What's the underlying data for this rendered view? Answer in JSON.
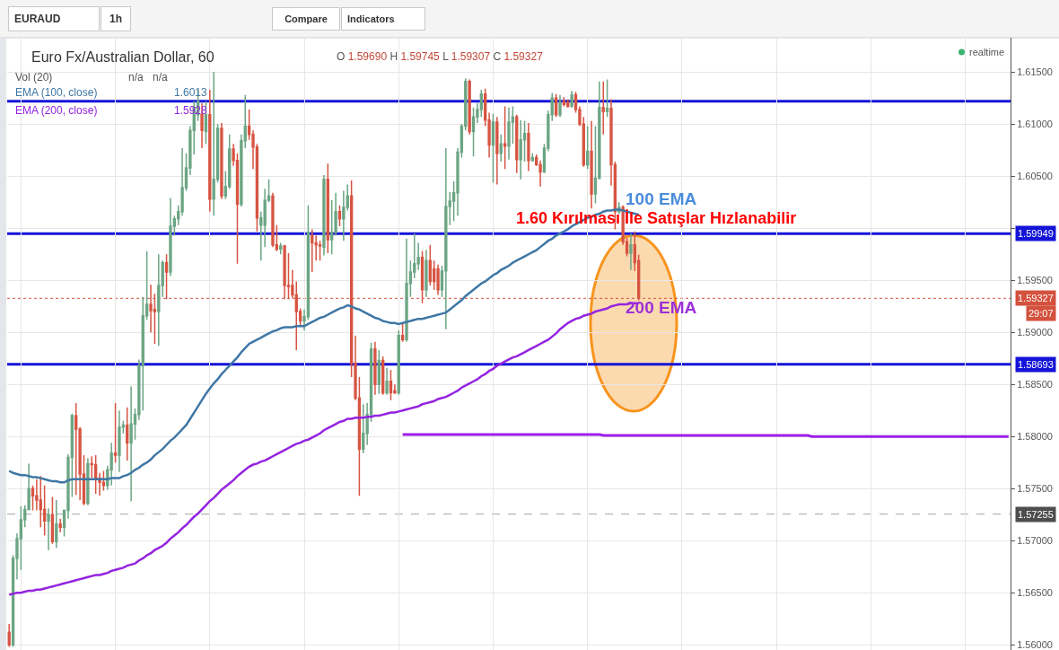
{
  "chart_data": {
    "type": "candlestick",
    "title": "Euro Fx/Australian Dollar, 60",
    "subtitle": "O 1.59690 H 1.59745 L 1.59307 C 1.59327",
    "categories": [
      null,
      null,
      null,
      null,
      null,
      null,
      null,
      null,
      null,
      null,
      null,
      null,
      null,
      null,
      null,
      null,
      null,
      null,
      null,
      null,
      null,
      null,
      null,
      null,
      null,
      null,
      null,
      null,
      null,
      null,
      null,
      null,
      null,
      null,
      null,
      null,
      null,
      null,
      null,
      null,
      null,
      null,
      null,
      null,
      null,
      null,
      null,
      null,
      null,
      null,
      null,
      null,
      null,
      null,
      null,
      null,
      null,
      null,
      null,
      null,
      null,
      null,
      null,
      null,
      null,
      null,
      null,
      null,
      null,
      null,
      null,
      null,
      null,
      null,
      null,
      null,
      null,
      null,
      null,
      null,
      null,
      null,
      null,
      null,
      null,
      null,
      null,
      null,
      null,
      null,
      null,
      null,
      null,
      null,
      null,
      null,
      null,
      null,
      null,
      null,
      null,
      null,
      null,
      null,
      null,
      null,
      null,
      null,
      null,
      null,
      null,
      null,
      null,
      null,
      null,
      null,
      null,
      null,
      null,
      null,
      null,
      null,
      null,
      null,
      null,
      null,
      null,
      null,
      null,
      null,
      null,
      null,
      null,
      null,
      null,
      null,
      null,
      null,
      null,
      null,
      null,
      null,
      null,
      null,
      null,
      null,
      null,
      null,
      null,
      null,
      null,
      null,
      null,
      null,
      null,
      null,
      null,
      null,
      null,
      null,
      null,
      null,
      null,
      null,
      null,
      null,
      null,
      null,
      null,
      null,
      null,
      null,
      null,
      null,
      null,
      null,
      null,
      null,
      null,
      null,
      null,
      null,
      null,
      null,
      null,
      null,
      null,
      null,
      null,
      null,
      null,
      null,
      null,
      null,
      null,
      null,
      null,
      null,
      null,
      null,
      null,
      null,
      null,
      null,
      null,
      null,
      null,
      null,
      null,
      null,
      null,
      null,
      null,
      null,
      null,
      null,
      null,
      null,
      null,
      null,
      null,
      null,
      null,
      null,
      null,
      null,
      null,
      null,
      null,
      null,
      null,
      null,
      null,
      null,
      null,
      null,
      null,
      null,
      null,
      null,
      null,
      null,
      null,
      null,
      null,
      null,
      null,
      null,
      null,
      null,
      null,
      null,
      null,
      null,
      null
    ],
    "ohlc": [
      [
        1.5612,
        1.562,
        1.5598,
        1.56
      ],
      [
        1.56,
        1.5686,
        1.5598,
        1.5683
      ],
      [
        1.5683,
        1.5707,
        1.5663,
        1.5702
      ],
      [
        1.5702,
        1.5733,
        1.5672,
        1.572
      ],
      [
        1.572,
        1.5734,
        1.5713,
        1.573
      ],
      [
        1.573,
        1.5774,
        1.5729,
        1.575
      ],
      [
        1.575,
        1.5753,
        1.5729,
        1.5743
      ],
      [
        1.5743,
        1.5759,
        1.5729,
        1.5739
      ],
      [
        1.5739,
        1.5762,
        1.5713,
        1.573
      ],
      [
        1.573,
        1.5753,
        1.5705,
        1.5719
      ],
      [
        1.5719,
        1.5731,
        1.5691,
        1.5725
      ],
      [
        1.5725,
        1.5742,
        1.5697,
        1.5699
      ],
      [
        1.5699,
        1.5739,
        1.5693,
        1.5716
      ],
      [
        1.5716,
        1.5721,
        1.5708,
        1.5713
      ],
      [
        1.5713,
        1.573,
        1.5704,
        1.5729
      ],
      [
        1.5729,
        1.5783,
        1.5721,
        1.578
      ],
      [
        1.578,
        1.5822,
        1.5742,
        1.582
      ],
      [
        1.582,
        1.5832,
        1.5744,
        1.5807
      ],
      [
        1.5807,
        1.5809,
        1.5739,
        1.5764
      ],
      [
        1.5764,
        1.5782,
        1.5734,
        1.5736
      ],
      [
        1.5736,
        1.5779,
        1.5734,
        1.5774
      ],
      [
        1.5774,
        1.5781,
        1.576,
        1.5773
      ],
      [
        1.5773,
        1.5782,
        1.5745,
        1.576
      ],
      [
        1.576,
        1.5765,
        1.5743,
        1.5756
      ],
      [
        1.5756,
        1.5767,
        1.5748,
        1.5753
      ],
      [
        1.5753,
        1.5772,
        1.5749,
        1.5768
      ],
      [
        1.5768,
        1.5794,
        1.5753,
        1.5784
      ],
      [
        1.5784,
        1.5832,
        1.5775,
        1.5782
      ],
      [
        1.5782,
        1.5825,
        1.5766,
        1.5809
      ],
      [
        1.5809,
        1.5815,
        1.5803,
        1.5811
      ],
      [
        1.5811,
        1.5828,
        1.5777,
        1.5794
      ],
      [
        1.5794,
        1.5848,
        1.5738,
        1.5812
      ],
      [
        1.5812,
        1.5827,
        1.5797,
        1.5821
      ],
      [
        1.5821,
        1.5874,
        1.5816,
        1.5868
      ],
      [
        1.5868,
        1.5934,
        1.5825,
        1.5916
      ],
      [
        1.5916,
        1.5978,
        1.5912,
        1.5927
      ],
      [
        1.5927,
        1.5946,
        1.59,
        1.5921
      ],
      [
        1.5922,
        1.5937,
        1.5889,
        1.592
      ],
      [
        1.592,
        1.5975,
        1.5887,
        1.5945
      ],
      [
        1.5945,
        1.5969,
        1.5934,
        1.5967
      ],
      [
        1.5967,
        1.5975,
        1.5932,
        1.5958
      ],
      [
        1.5958,
        1.6029,
        1.5954,
        1.6002
      ],
      [
        1.6002,
        1.6012,
        1.5993,
        1.6009
      ],
      [
        1.6009,
        1.6022,
        1.6003,
        1.6016
      ],
      [
        1.6016,
        1.6077,
        1.6012,
        1.6039
      ],
      [
        1.6039,
        1.6072,
        1.6036,
        1.6058
      ],
      [
        1.6058,
        1.6098,
        1.6051,
        1.6094
      ],
      [
        1.6094,
        1.6122,
        1.6071,
        1.6116
      ],
      [
        1.6109,
        1.6133,
        1.6103,
        1.6122
      ],
      [
        1.6109,
        1.612,
        1.6077,
        1.6094
      ],
      [
        1.6093,
        1.6122,
        1.6081,
        1.6109
      ],
      [
        1.6109,
        1.6133,
        1.6016,
        1.6028
      ],
      [
        1.6028,
        1.615,
        1.6012,
        1.6047
      ],
      [
        1.6047,
        1.61,
        1.6044,
        1.6096
      ],
      [
        1.6096,
        1.6101,
        1.6028,
        1.6031
      ],
      [
        1.6031,
        1.6055,
        1.6028,
        1.604
      ],
      [
        1.604,
        1.609,
        1.6038,
        1.6076
      ],
      [
        1.6076,
        1.6081,
        1.606,
        1.6065
      ],
      [
        1.6065,
        1.6072,
        1.5966,
        1.6023
      ],
      [
        1.6023,
        1.609,
        1.6021,
        1.6084
      ],
      [
        1.6084,
        1.6128,
        1.6077,
        1.6098
      ],
      [
        1.6098,
        1.6114,
        1.6085,
        1.609
      ],
      [
        1.609,
        1.6094,
        1.6057,
        1.6078
      ],
      [
        1.6078,
        1.6081,
        1.5997,
        1.601
      ],
      [
        1.6003,
        1.6016,
        1.5969,
        1.601
      ],
      [
        1.6003,
        1.6038,
        1.5982,
        1.6027
      ],
      [
        1.6027,
        1.6047,
        1.6025,
        1.6031
      ],
      [
        1.6031,
        1.6034,
        1.5982,
        1.5984
      ],
      [
        1.5984,
        1.6003,
        1.5978,
        1.598
      ],
      [
        1.598,
        1.5986,
        1.5975,
        1.5983
      ],
      [
        1.5983,
        1.5984,
        1.5932,
        1.5945
      ],
      [
        1.5945,
        1.5976,
        1.5932,
        1.5944
      ],
      [
        1.5945,
        1.596,
        1.5933,
        1.5936
      ],
      [
        1.5936,
        1.5949,
        1.5883,
        1.592
      ],
      [
        1.592,
        1.5923,
        1.5907,
        1.5911
      ],
      [
        1.5911,
        1.5922,
        1.5902,
        1.5915
      ],
      [
        1.5915,
        1.6022,
        1.5912,
        1.5996
      ],
      [
        1.5993,
        1.5999,
        1.5958,
        1.5986
      ],
      [
        1.5986,
        1.5993,
        1.5969,
        1.5984
      ],
      [
        1.5984,
        1.5988,
        1.5969,
        1.5983
      ],
      [
        1.5982,
        1.6051,
        1.5974,
        1.6047
      ],
      [
        1.6047,
        1.6062,
        1.5976,
        1.5989
      ],
      [
        1.5989,
        1.6027,
        1.5975,
        1.5996
      ],
      [
        1.5996,
        1.6034,
        1.5993,
        1.6016
      ],
      [
        1.6016,
        1.6022,
        1.6002,
        1.6009
      ],
      [
        1.6009,
        1.6036,
        1.5988,
        1.602
      ],
      [
        1.602,
        1.6042,
        1.6017,
        1.6031
      ],
      [
        1.6031,
        1.6046,
        1.5857,
        1.587
      ],
      [
        1.587,
        1.5897,
        1.5835,
        1.5837
      ],
      [
        1.5837,
        1.5857,
        1.5743,
        1.5788
      ],
      [
        1.5788,
        1.5831,
        1.5784,
        1.5803
      ],
      [
        1.5803,
        1.5832,
        1.5792,
        1.5821
      ],
      [
        1.5821,
        1.589,
        1.5814,
        1.5884
      ],
      [
        1.5884,
        1.5891,
        1.584,
        1.585
      ],
      [
        1.585,
        1.5883,
        1.5841,
        1.5873
      ],
      [
        1.5873,
        1.5877,
        1.584,
        1.5842
      ],
      [
        1.5842,
        1.5866,
        1.584,
        1.5853
      ],
      [
        1.5853,
        1.5864,
        1.5835,
        1.5842
      ],
      [
        1.5844,
        1.585,
        1.5841,
        1.5842
      ],
      [
        1.5842,
        1.5902,
        1.584,
        1.5897
      ],
      [
        1.5897,
        1.5909,
        1.5891,
        1.5893
      ],
      [
        1.5893,
        1.599,
        1.5891,
        1.5947
      ],
      [
        1.5947,
        1.5969,
        1.5934,
        1.5958
      ],
      [
        1.5958,
        1.5995,
        1.5952,
        1.5966
      ],
      [
        1.5966,
        1.5986,
        1.596,
        1.5972
      ],
      [
        1.5972,
        1.5978,
        1.5928,
        1.5941
      ],
      [
        1.5941,
        1.5979,
        1.5934,
        1.5969
      ],
      [
        1.5969,
        1.5984,
        1.5945,
        1.5949
      ],
      [
        1.5961,
        1.5969,
        1.5941,
        1.5949
      ],
      [
        1.5961,
        1.5965,
        1.5936,
        1.5941
      ],
      [
        1.5941,
        1.5964,
        1.5934,
        1.5959
      ],
      [
        1.5959,
        1.6077,
        1.5903,
        1.6021
      ],
      [
        1.6021,
        1.6035,
        1.6003,
        1.6026
      ],
      [
        1.6026,
        1.6045,
        1.6007,
        1.6034
      ],
      [
        1.6034,
        1.6077,
        1.6012,
        1.6073
      ],
      [
        1.6073,
        1.61,
        1.6068,
        1.6098
      ],
      [
        1.6098,
        1.6144,
        1.6094,
        1.6141
      ],
      [
        1.6141,
        1.6143,
        1.609,
        1.6093
      ],
      [
        1.6093,
        1.6116,
        1.6069,
        1.6107
      ],
      [
        1.6107,
        1.612,
        1.6101,
        1.6114
      ],
      [
        1.6114,
        1.6133,
        1.6107,
        1.6129
      ],
      [
        1.6129,
        1.6134,
        1.6098,
        1.6104
      ],
      [
        1.6104,
        1.6111,
        1.6068,
        1.608
      ],
      [
        1.608,
        1.611,
        1.6044,
        1.6102
      ],
      [
        1.6102,
        1.6107,
        1.6042,
        1.6072
      ],
      [
        1.6072,
        1.609,
        1.6064,
        1.6081
      ],
      [
        1.6081,
        1.6117,
        1.6057,
        1.6079
      ],
      [
        1.6079,
        1.6116,
        1.6066,
        1.6102
      ],
      [
        1.6102,
        1.6117,
        1.6081,
        1.6107
      ],
      [
        1.6107,
        1.6109,
        1.6053,
        1.6066
      ],
      [
        1.6066,
        1.6104,
        1.6047,
        1.6085
      ],
      [
        1.6085,
        1.6103,
        1.6064,
        1.6091
      ],
      [
        1.6091,
        1.6101,
        1.6055,
        1.6065
      ],
      [
        1.6065,
        1.6072,
        1.6064,
        1.6068
      ],
      [
        1.6068,
        1.6071,
        1.606,
        1.6061
      ],
      [
        1.6061,
        1.6065,
        1.604,
        1.6054
      ],
      [
        1.6054,
        1.6081,
        1.6053,
        1.6077
      ],
      [
        1.6077,
        1.6113,
        1.6074,
        1.6109
      ],
      [
        1.6109,
        1.613,
        1.6103,
        1.6125
      ],
      [
        1.6125,
        1.6129,
        1.6107,
        1.6109
      ],
      [
        1.6109,
        1.6128,
        1.6107,
        1.6121
      ],
      [
        1.6122,
        1.6126,
        1.6117,
        1.6119
      ],
      [
        1.6121,
        1.6124,
        1.6116,
        1.6117
      ],
      [
        1.6117,
        1.6132,
        1.6116,
        1.6128
      ],
      [
        1.6128,
        1.6131,
        1.6111,
        1.6114
      ],
      [
        1.6114,
        1.6117,
        1.6098,
        1.61
      ],
      [
        1.61,
        1.6107,
        1.6059,
        1.6061
      ],
      [
        1.6061,
        1.6098,
        1.6057,
        1.6074
      ],
      [
        1.6074,
        1.6103,
        1.6019,
        1.6033
      ],
      [
        1.6033,
        1.6098,
        1.6024,
        1.6048
      ],
      [
        1.6048,
        1.6141,
        1.6047,
        1.6116
      ],
      [
        1.6116,
        1.6141,
        1.609,
        1.6112
      ],
      [
        1.6112,
        1.6143,
        1.6107,
        1.6115
      ],
      [
        1.6115,
        1.6124,
        1.6041,
        1.6061
      ],
      [
        1.6061,
        1.6064,
        1.5999,
        1.6016
      ],
      [
        1.6016,
        1.6025,
        1.6014,
        1.602
      ],
      [
        1.602,
        1.6022,
        1.5984,
        1.5987
      ],
      [
        1.5987,
        1.5991,
        1.5973,
        1.5976
      ],
      [
        1.5976,
        1.5995,
        1.596,
        1.5984
      ],
      [
        1.5984,
        1.5997,
        1.5959,
        1.5967
      ],
      [
        1.5969,
        1.59745,
        1.59307,
        1.59327
      ],
      null,
      null,
      null,
      null,
      null,
      null,
      null,
      null,
      null,
      null,
      null,
      null,
      null,
      null,
      null,
      null,
      null,
      null,
      null,
      null,
      null,
      null,
      null,
      null,
      null,
      null,
      null,
      null,
      null,
      null,
      null,
      null,
      null,
      null,
      null,
      null,
      null,
      null,
      null,
      null,
      null,
      null,
      null,
      null,
      null,
      null,
      null,
      null,
      null,
      null,
      null,
      null,
      null,
      null,
      null,
      null,
      null,
      null,
      null,
      null,
      null,
      null,
      null,
      null,
      null,
      null,
      null,
      null,
      null,
      null,
      null,
      null,
      null,
      null,
      null,
      null,
      null,
      null,
      null,
      null,
      null,
      null,
      null,
      null,
      null,
      null,
      null,
      null,
      null,
      null,
      null,
      null,
      null,
      null
    ],
    "colors": [
      "#d75442",
      "#6ba583",
      "#6ba583",
      "#6ba583",
      "#6ba583",
      "#6ba583",
      "#d75442",
      "#d75442",
      "#d75442",
      "#d75442",
      "#6ba583",
      "#d75442",
      "#6ba583",
      "#d75442",
      "#6ba583",
      "#6ba583",
      "#6ba583",
      "#d75442",
      "#d75442",
      "#d75442",
      "#6ba583",
      "#d75442",
      "#d75442",
      "#d75442",
      "#d75442",
      "#6ba583",
      "#6ba583",
      "#d75442",
      "#6ba583",
      "#6ba583",
      "#d75442",
      "#6ba583",
      "#6ba583",
      "#6ba583",
      "#6ba583",
      "#6ba583",
      "#d75442",
      "#d75442",
      "#6ba583",
      "#6ba583",
      "#d75442",
      "#6ba583",
      "#6ba583",
      "#6ba583",
      "#6ba583",
      "#6ba583",
      "#6ba583",
      "#6ba583",
      "#6ba583",
      "#d75442",
      "#6ba583",
      "#d75442",
      "#6ba583",
      "#6ba583",
      "#d75442",
      "#6ba583",
      "#6ba583",
      "#d75442",
      "#d75442",
      "#6ba583",
      "#6ba583",
      "#d75442",
      "#d75442",
      "#d75442",
      "#6ba583",
      "#6ba583",
      "#6ba583",
      "#d75442",
      "#d75442",
      "#6ba583",
      "#d75442",
      "#d75442",
      "#d75442",
      "#d75442",
      "#d75442",
      "#6ba583",
      "#6ba583",
      "#d75442",
      "#d75442",
      "#d75442",
      "#6ba583",
      "#d75442",
      "#6ba583",
      "#6ba583",
      "#d75442",
      "#6ba583",
      "#6ba583",
      "#d75442",
      "#d75442",
      "#d75442",
      "#6ba583",
      "#6ba583",
      "#6ba583",
      "#d75442",
      "#6ba583",
      "#d75442",
      "#6ba583",
      "#d75442",
      "#d75442",
      "#6ba583",
      "#d75442",
      "#6ba583",
      "#6ba583",
      "#6ba583",
      "#6ba583",
      "#d75442",
      "#6ba583",
      "#d75442",
      "#d75442",
      "#d75442",
      "#6ba583",
      "#6ba583",
      "#6ba583",
      "#6ba583",
      "#6ba583",
      "#6ba583",
      "#6ba583",
      "#d75442",
      "#6ba583",
      "#6ba583",
      "#6ba583",
      "#d75442",
      "#d75442",
      "#6ba583",
      "#d75442",
      "#6ba583",
      "#d75442",
      "#6ba583",
      "#6ba583",
      "#d75442",
      "#6ba583",
      "#6ba583",
      "#d75442",
      "#6ba583",
      "#d75442",
      "#d75442",
      "#6ba583",
      "#6ba583",
      "#6ba583",
      "#d75442",
      "#6ba583",
      "#d75442",
      "#d75442",
      "#6ba583",
      "#d75442",
      "#d75442",
      "#d75442",
      "#6ba583",
      "#d75442",
      "#6ba583",
      "#6ba583",
      "#d75442",
      "#6ba583",
      "#d75442",
      "#d75442",
      "#6ba583",
      "#d75442",
      "#d75442",
      "#6ba583",
      "#d75442",
      "#d75442",
      null,
      null,
      null,
      null,
      null,
      null,
      null,
      null,
      null,
      null,
      null,
      null,
      null,
      null,
      null,
      null,
      null,
      null,
      null,
      null,
      null,
      null,
      null,
      null,
      null,
      null,
      null,
      null,
      null,
      null,
      null,
      null,
      null,
      null,
      null,
      null,
      null,
      null,
      null,
      null,
      null,
      null,
      null,
      null,
      null,
      null,
      null,
      null,
      null,
      null,
      null,
      null,
      null,
      null,
      null,
      null,
      null,
      null,
      null,
      null,
      null,
      null,
      null,
      null,
      null,
      null,
      null,
      null,
      null,
      null,
      null,
      null,
      null,
      null,
      null,
      null,
      null,
      null,
      null,
      null,
      null,
      null,
      null,
      null,
      null,
      null,
      null,
      null,
      null,
      null,
      null,
      null,
      null,
      null
    ],
    "series": [
      {
        "name": "EMA (100, close)",
        "type": "line",
        "color": "#3f77a5",
        "values": [
          1.5767,
          1.5765,
          1.5764,
          1.5763,
          1.5763,
          1.5762,
          1.5761,
          1.5761,
          1.576,
          1.5759,
          1.5758,
          1.5757,
          1.5757,
          1.5756,
          1.5756,
          1.5758,
          1.5759,
          1.5759,
          1.5759,
          1.5759,
          1.5759,
          1.5759,
          1.5759,
          1.5759,
          1.5759,
          1.5759,
          1.576,
          1.576,
          1.576,
          1.5762,
          1.5763,
          1.5765,
          1.5768,
          1.577,
          1.5773,
          1.5775,
          1.5778,
          1.5782,
          1.5785,
          1.5788,
          1.5792,
          1.5796,
          1.5799,
          1.5803,
          1.5807,
          1.5811,
          1.5817,
          1.5823,
          1.5829,
          1.5835,
          1.5841,
          1.5846,
          1.5851,
          1.5855,
          1.586,
          1.5864,
          1.5868,
          1.5872,
          1.5876,
          1.5881,
          1.5885,
          1.5889,
          1.5891,
          1.5893,
          1.5895,
          1.5897,
          1.5899,
          1.5901,
          1.5902,
          1.5904,
          1.5905,
          1.5905,
          1.5905,
          1.5906,
          1.5906,
          1.5906,
          1.5908,
          1.591,
          1.5912,
          1.5914,
          1.5915,
          1.5917,
          1.5919,
          1.5921,
          1.5923,
          1.5924,
          1.5926,
          1.5925,
          1.5923,
          1.5922,
          1.592,
          1.5918,
          1.5916,
          1.5914,
          1.5913,
          1.5911,
          1.591,
          1.5909,
          1.5909,
          1.5908,
          1.5909,
          1.591,
          1.5911,
          1.5912,
          1.5913,
          1.5913,
          1.5914,
          1.5915,
          1.5916,
          1.5917,
          1.5918,
          1.5919,
          1.5922,
          1.5925,
          1.5928,
          1.5931,
          1.5935,
          1.5938,
          1.5941,
          1.5944,
          1.5947,
          1.5949,
          1.5952,
          1.5955,
          1.5957,
          1.596,
          1.5962,
          1.5964,
          1.5967,
          1.5969,
          1.5971,
          1.5973,
          1.5975,
          1.5977,
          1.5979,
          1.5982,
          1.5985,
          1.5988,
          1.599,
          1.5993,
          1.5995,
          1.5997,
          1.5999,
          1.6002,
          1.6004,
          1.6006,
          1.6008,
          1.601,
          1.6011,
          1.6013,
          1.6014,
          1.6016,
          1.6017,
          1.6017,
          1.6018,
          1.6018,
          1.6017,
          1.6016,
          1.6015,
          1.6014,
          1.6013,
          null,
          null,
          null,
          null,
          null,
          null,
          null,
          null,
          null,
          null,
          null,
          null,
          null,
          null,
          null,
          null,
          null,
          null,
          null,
          null,
          null,
          null,
          null,
          null,
          null,
          null,
          null,
          null,
          null,
          null,
          null,
          null,
          null,
          null,
          null,
          null,
          null,
          null,
          null,
          null,
          null,
          null,
          null,
          null,
          null,
          null,
          null,
          null,
          null,
          null,
          null,
          null,
          null,
          null,
          null,
          null,
          null,
          null,
          null,
          null,
          null,
          null,
          null,
          null,
          null,
          null,
          null,
          null,
          null,
          null,
          null,
          null,
          null,
          null,
          null,
          null,
          null,
          null,
          null,
          null,
          null,
          null,
          null,
          null,
          null,
          null,
          null,
          null,
          null,
          null,
          null,
          null,
          null,
          null
        ]
      },
      {
        "name": "EMA (200, close)",
        "type": "line",
        "color": "#9423e0",
        "values": [
          1.5648,
          1.5649,
          1.565,
          1.565,
          1.5651,
          1.5652,
          1.5652,
          1.5653,
          1.5653,
          1.5654,
          1.5655,
          1.5656,
          1.5657,
          1.5658,
          1.5659,
          1.566,
          1.5661,
          1.5662,
          1.5663,
          1.5664,
          1.5665,
          1.5666,
          1.5667,
          1.5667,
          1.5668,
          1.5669,
          1.5671,
          1.5672,
          1.5673,
          1.5674,
          1.5676,
          1.5677,
          1.5678,
          1.5681,
          1.5683,
          1.5686,
          1.5688,
          1.5691,
          1.5693,
          1.5695,
          1.5698,
          1.5702,
          1.5705,
          1.5708,
          1.5712,
          1.5715,
          1.5719,
          1.5723,
          1.5726,
          1.573,
          1.5734,
          1.5738,
          1.5741,
          1.5745,
          1.5749,
          1.5752,
          1.5755,
          1.5758,
          1.5762,
          1.5765,
          1.5768,
          1.5771,
          1.5773,
          1.5774,
          1.5776,
          1.5777,
          1.5779,
          1.5781,
          1.5783,
          1.5785,
          1.5787,
          1.5789,
          1.5791,
          1.5793,
          1.5794,
          1.5796,
          1.5797,
          1.5799,
          1.5801,
          1.5803,
          1.5806,
          1.5808,
          1.581,
          1.5812,
          1.5814,
          1.5815,
          1.5817,
          1.5817,
          1.5818,
          1.5818,
          1.5818,
          1.5819,
          1.5819,
          1.582,
          1.582,
          1.5821,
          1.5822,
          1.5823,
          1.5823,
          1.5824,
          1.5825,
          1.5826,
          1.5827,
          1.5828,
          1.5829,
          1.5831,
          1.5832,
          1.5833,
          1.5834,
          1.5836,
          1.5837,
          1.5838,
          1.584,
          1.5842,
          1.5844,
          1.5847,
          1.5849,
          1.5851,
          1.5853,
          1.5855,
          1.5858,
          1.586,
          1.5863,
          1.5865,
          1.5868,
          1.587,
          1.5872,
          1.5874,
          1.5876,
          1.5877,
          1.5879,
          1.5881,
          1.5883,
          1.5885,
          1.5887,
          1.5889,
          1.5891,
          1.5893,
          1.5896,
          1.5899,
          1.5903,
          1.5906,
          1.5909,
          1.5911,
          1.5913,
          1.5914,
          1.5916,
          1.5917,
          1.5918,
          1.592,
          1.5921,
          1.5922,
          1.5923,
          1.5925,
          1.5926,
          1.5927,
          1.5927,
          1.5927,
          1.5928,
          1.5928,
          1.5928,
          null,
          null,
          null,
          null,
          null,
          null,
          null,
          null,
          null,
          null,
          null,
          null,
          null,
          null,
          null,
          null,
          null,
          null,
          null,
          null,
          null,
          null,
          null,
          null,
          null,
          null,
          null,
          null,
          null,
          null,
          null,
          null,
          null,
          null,
          null,
          null,
          null,
          null,
          null,
          null,
          null,
          null,
          null,
          null,
          null,
          null,
          null,
          null,
          null,
          null,
          null,
          null,
          null,
          null,
          null,
          null,
          null,
          null,
          null,
          null,
          null,
          null,
          null,
          null,
          null,
          null,
          null,
          null,
          null,
          null,
          null,
          null,
          null,
          null,
          null,
          null,
          null,
          null,
          null,
          null,
          null,
          null,
          null,
          null,
          null,
          null,
          null,
          null,
          null,
          null,
          null,
          null,
          null,
          null
        ]
      },
      {
        "type": "line",
        "color": "#9b1fe8",
        "values": [
          null,
          null,
          null,
          null,
          null,
          null,
          null,
          null,
          null,
          null,
          null,
          null,
          null,
          null,
          null,
          null,
          null,
          null,
          null,
          null,
          null,
          null,
          null,
          null,
          null,
          null,
          null,
          null,
          null,
          null,
          null,
          null,
          null,
          null,
          null,
          null,
          null,
          null,
          null,
          null,
          null,
          null,
          null,
          null,
          null,
          null,
          null,
          null,
          null,
          null,
          null,
          null,
          null,
          null,
          null,
          null,
          null,
          null,
          null,
          null,
          null,
          null,
          null,
          null,
          null,
          null,
          null,
          null,
          null,
          null,
          null,
          null,
          null,
          null,
          null,
          null,
          null,
          null,
          null,
          null,
          null,
          null,
          null,
          null,
          null,
          null,
          null,
          null,
          null,
          null,
          null,
          null,
          null,
          null,
          null,
          null,
          null,
          null,
          null,
          null,
          1.5802,
          1.5802,
          1.5802,
          1.5802,
          1.5802,
          1.5802,
          1.5802,
          1.5802,
          1.5802,
          1.5802,
          1.5802,
          1.5802,
          1.5802,
          1.5802,
          1.5802,
          1.5802,
          1.5802,
          1.5802,
          1.5802,
          1.5802,
          1.5802,
          1.5802,
          1.5802,
          1.5802,
          1.5802,
          1.5802,
          1.5802,
          1.5802,
          1.5802,
          1.5802,
          1.5802,
          1.5802,
          1.5802,
          1.5802,
          1.5802,
          1.5802,
          1.5802,
          1.5802,
          1.5802,
          1.5802,
          1.5802,
          1.5802,
          1.5802,
          1.5802,
          1.5802,
          1.5802,
          1.5802,
          1.5802,
          1.5802,
          1.5802,
          1.5802,
          1.5801,
          1.5801,
          1.5801,
          1.5801,
          1.5801,
          1.5801,
          1.5801,
          1.5801,
          1.5801,
          1.5801,
          1.5801,
          1.5801,
          1.5801,
          1.5801,
          1.5801,
          1.5801,
          1.5801,
          1.5801,
          1.5801,
          1.5801,
          1.5801,
          1.5801,
          1.5801,
          1.5801,
          1.5801,
          1.5801,
          1.5801,
          1.5801,
          1.5801,
          1.5801,
          1.5801,
          1.5801,
          1.5801,
          1.5801,
          1.5801,
          1.5801,
          1.5801,
          1.5801,
          1.5801,
          1.5801,
          1.5801,
          1.5801,
          1.5801,
          1.5801,
          1.5801,
          1.5801,
          1.5801,
          1.5801,
          1.5801,
          1.5801,
          1.5801,
          1.5801,
          1.5801,
          1.58,
          1.58,
          1.58,
          1.58,
          1.58,
          1.58,
          1.58,
          1.58,
          1.58,
          1.58,
          1.58,
          1.58,
          1.58,
          1.58,
          1.58,
          1.58,
          1.58,
          1.58,
          1.58,
          1.58,
          1.58,
          1.58,
          1.58,
          1.58,
          1.58,
          1.58,
          1.58,
          1.58,
          1.58,
          1.58,
          1.58,
          1.58,
          1.58,
          1.58,
          1.58,
          1.58,
          1.58,
          1.58,
          1.58,
          1.58,
          1.58,
          1.58,
          1.58,
          1.58,
          1.58,
          1.58,
          1.58,
          1.58,
          1.58,
          1.58,
          1.58
        ]
      }
    ],
    "ylim": [
      1.5595,
      1.6183
    ],
    "yticks": [
      {
        "value": 1.56,
        "label": "1.56000"
      },
      {
        "value": 1.565,
        "label": "1.56500"
      },
      {
        "value": 1.57,
        "label": "1.57000"
      },
      {
        "value": 1.575,
        "label": "1.57500"
      },
      {
        "value": 1.58,
        "label": "1.58000"
      },
      {
        "value": 1.585,
        "label": "1.58500"
      },
      {
        "value": 1.59,
        "label": "1.59000"
      },
      {
        "value": 1.595,
        "label": "1.59500"
      },
      {
        "value": 1.6,
        "label": null
      },
      {
        "value": 1.605,
        "label": "1.60500"
      },
      {
        "value": 1.61,
        "label": "1.61000"
      },
      {
        "value": 1.615,
        "label": "1.61500"
      }
    ],
    "ref_lines": [
      {
        "axis": "y",
        "value": 1.6122,
        "color": "#1414d8",
        "line_style": "solid"
      },
      {
        "axis": "y",
        "value": 1.59949,
        "label": "1.59949",
        "color": "#1414d8",
        "line_style": "solid"
      },
      {
        "axis": "y",
        "value": 1.58693,
        "label": "1.58693",
        "color": "#1414d8",
        "line_style": "solid"
      },
      {
        "axis": "y",
        "value": 1.59327,
        "label": "1.59327",
        "color": "#d4513d",
        "line_style": "dotted"
      },
      {
        "axis": "y",
        "value": 1.57255,
        "label": "1.57255",
        "color": "#4d4d4d",
        "line_style": "dashed"
      }
    ],
    "annotations": [
      "EURAUD",
      "1h",
      "Compare",
      "Indicators",
      "realtime",
      "Vol (20)",
      "n/a",
      "n/a",
      "1.6013",
      "1.5928",
      "100 EMA",
      "1.60 Kırılması İle Satışlar Hızlanabilir",
      "200 EMA",
      "29:07"
    ],
    "grid": true,
    "legend": "top left",
    "tick_labels": "y"
  }
}
